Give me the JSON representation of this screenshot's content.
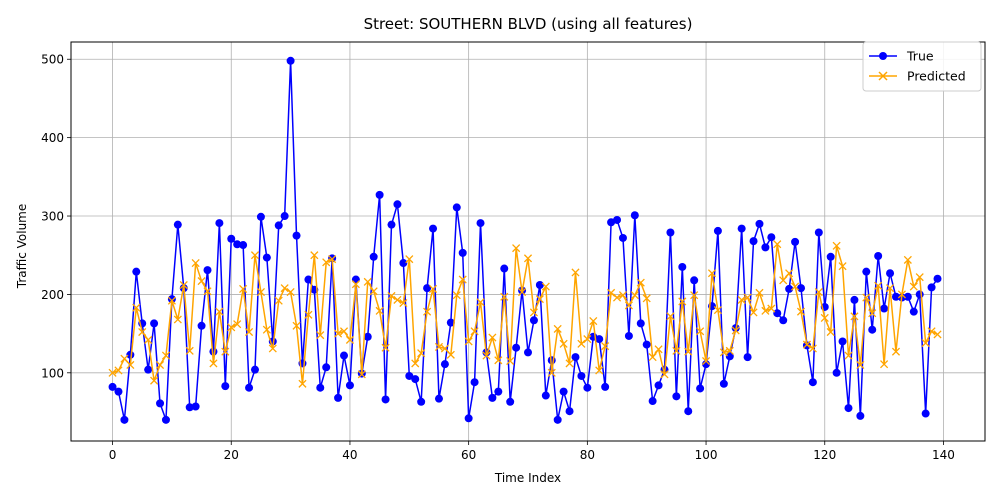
{
  "chart_data": {
    "type": "line",
    "title": "Street: SOUTHERN BLVD (using all features)",
    "xlabel": "Time Index",
    "ylabel": "Traffic Volume",
    "xlim": [
      -7,
      147
    ],
    "ylim": [
      13,
      522
    ],
    "xticks": [
      0,
      20,
      40,
      60,
      80,
      100,
      120,
      140
    ],
    "yticks": [
      100,
      200,
      300,
      400,
      500
    ],
    "grid": true,
    "legend_position": "top-right",
    "series": [
      {
        "name": "True",
        "color": "#0000ff",
        "marker": "circle",
        "values": [
          82,
          76,
          40,
          123,
          229,
          163,
          104,
          163,
          61,
          40,
          194,
          289,
          208,
          56,
          57,
          160,
          231,
          127,
          291,
          83,
          271,
          264,
          263,
          81,
          104,
          299,
          247,
          140,
          288,
          300,
          498,
          275,
          112,
          219,
          206,
          81,
          107,
          246,
          68,
          122,
          84,
          219,
          99,
          146,
          248,
          327,
          66,
          289,
          315,
          240,
          96,
          92,
          63,
          208,
          284,
          67,
          111,
          164,
          311,
          253,
          42,
          88,
          291,
          126,
          68,
          76,
          233,
          63,
          132,
          205,
          126,
          167,
          212,
          71,
          116,
          40,
          76,
          51,
          120,
          96,
          81,
          146,
          143,
          82,
          292,
          295,
          272,
          147,
          301,
          163,
          136,
          64,
          84,
          104,
          279,
          70,
          235,
          51,
          218,
          80,
          111,
          185,
          281,
          86,
          121,
          157,
          284,
          120,
          268,
          290,
          260,
          273,
          176,
          167,
          207,
          267,
          208,
          135,
          88,
          279,
          184,
          248,
          100,
          140,
          55,
          193,
          45,
          229,
          155,
          249,
          182,
          227,
          197,
          196,
          197,
          178,
          200,
          48,
          209,
          220
        ]
      },
      {
        "name": "Predicted",
        "color": "#ffa500",
        "marker": "x",
        "values": [
          100,
          103,
          118,
          110,
          183,
          152,
          142,
          90,
          110,
          122,
          192,
          168,
          212,
          128,
          240,
          217,
          204,
          112,
          178,
          127,
          158,
          162,
          207,
          152,
          250,
          203,
          155,
          131,
          192,
          208,
          203,
          160,
          86,
          174,
          250,
          148,
          241,
          245,
          150,
          153,
          142,
          213,
          98,
          216,
          204,
          179,
          132,
          198,
          193,
          189,
          245,
          112,
          125,
          178,
          207,
          133,
          131,
          123,
          199,
          219,
          140,
          153,
          190,
          122,
          145,
          116,
          197,
          115,
          259,
          203,
          246,
          177,
          194,
          210,
          100,
          156,
          137,
          112,
          228,
          137,
          143,
          166,
          103,
          134,
          202,
          196,
          199,
          186,
          199,
          215,
          195,
          120,
          130,
          98,
          172,
          128,
          191,
          127,
          199,
          153,
          115,
          227,
          180,
          126,
          128,
          154,
          193,
          196,
          177,
          202,
          179,
          182,
          264,
          218,
          227,
          210,
          178,
          136,
          131,
          203,
          170,
          152,
          262,
          236,
          122,
          172,
          110,
          196,
          176,
          211,
          111,
          208,
          127,
          200,
          244,
          210,
          222,
          138,
          153,
          149
        ]
      }
    ]
  }
}
